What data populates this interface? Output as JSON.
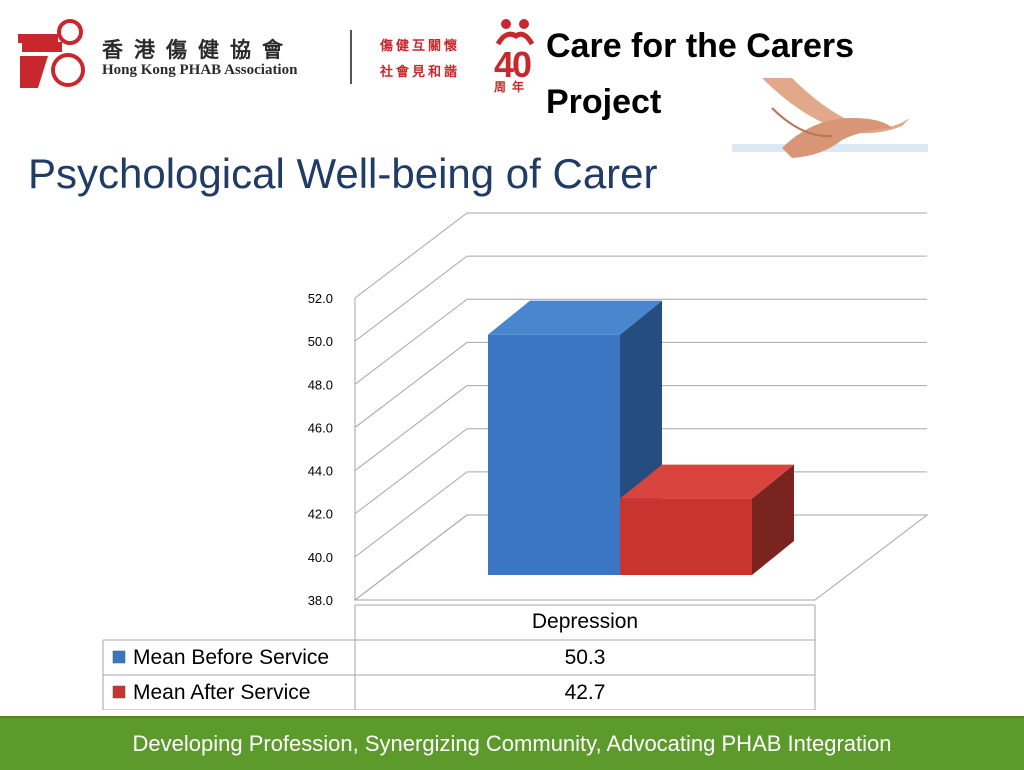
{
  "header": {
    "org_name_zh": "香港傷健協會",
    "org_name_en": "Hong Kong PHAB Association",
    "slogan_line1": "傷健互關懷",
    "slogan_line2": "社會見和諧",
    "anniversary_number": "40",
    "anniversary_label": "周年",
    "project_title": "Care for the Carers Project"
  },
  "page_title": "Psychological Well-being of Carer",
  "chart_data": {
    "type": "bar",
    "categories": [
      "Depression"
    ],
    "series": [
      {
        "name": "Mean Before Service",
        "values": [
          50.3
        ],
        "color": "#3a76c4"
      },
      {
        "name": "Mean After Service",
        "values": [
          42.7
        ],
        "color": "#c83530"
      }
    ],
    "ylim": [
      38.0,
      52.0
    ],
    "yticks": [
      "38.0",
      "40.0",
      "42.0",
      "44.0",
      "46.0",
      "48.0",
      "50.0",
      "52.0"
    ],
    "grid": true,
    "data_table": [
      {
        "label": "Mean Before Service",
        "value": "50.3"
      },
      {
        "label": "Mean After Service",
        "value": "42.7"
      }
    ]
  },
  "footer": {
    "tagline": "Developing Profession, Synergizing Community, Advocating PHAB Integration"
  },
  "colors": {
    "title_blue": "#1f3b66",
    "footer_green": "#5c9a2c",
    "brand_red": "#c8282d"
  }
}
